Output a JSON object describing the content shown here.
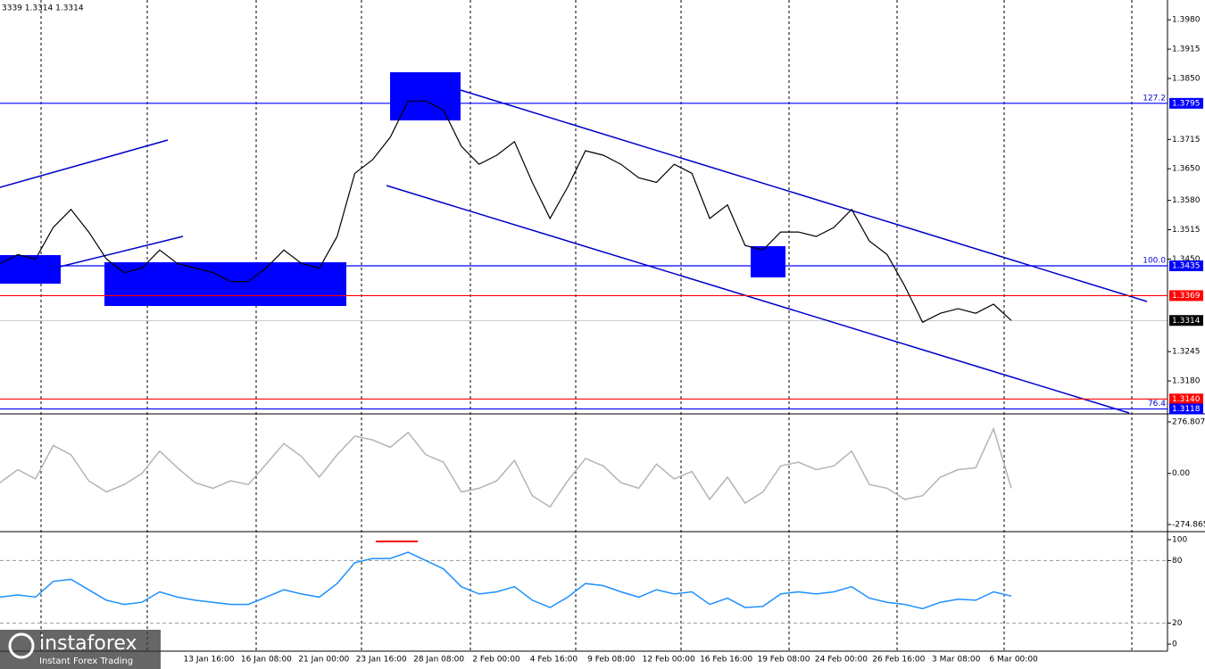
{
  "chart_data": [
    {
      "type": "line",
      "title": "3339 1.3314 1.3314",
      "color": "#000000",
      "values": [
        1.344,
        1.346,
        1.345,
        1.352,
        1.356,
        1.351,
        1.345,
        1.342,
        1.343,
        1.347,
        1.344,
        1.343,
        1.342,
        1.34,
        1.34,
        1.343,
        1.347,
        1.344,
        1.343,
        1.35,
        1.364,
        1.367,
        1.372,
        1.38,
        1.38,
        1.378,
        1.37,
        1.366,
        1.368,
        1.371,
        1.362,
        1.354,
        1.361,
        1.369,
        1.368,
        1.366,
        1.363,
        1.362,
        1.366,
        1.364,
        1.354,
        1.357,
        1.348,
        1.347,
        1.351,
        1.351,
        1.35,
        1.352,
        1.356,
        1.349,
        1.346,
        1.339,
        1.331,
        1.333,
        1.334,
        1.333,
        1.335,
        1.3314
      ],
      "ylim": [
        1.3109,
        1.4014
      ],
      "yticks": [
        {
          "value": 1.398,
          "label": "1.3980"
        },
        1.3915,
        {
          "value": 1.385,
          "label": "1.3850"
        },
        1.3715,
        {
          "value": 1.365,
          "label": "1.3650"
        },
        {
          "value": 1.358,
          "label": "1.3580"
        },
        1.3515,
        {
          "value": 1.345,
          "label": "1.3450"
        },
        1.3245,
        {
          "value": 1.318,
          "label": "1.3180"
        }
      ],
      "levels": [
        {
          "value": 1.3795,
          "label": "1.3795",
          "color": "#0000ff",
          "fib": 127.2
        },
        {
          "value": 1.3435,
          "label": "1.3435",
          "color": "#0000ff",
          "fib": {
            "value": 100,
            "label": "100.0"
          }
        },
        {
          "value": 1.3369,
          "label": "1.3369",
          "color": "#ff0000"
        },
        {
          "value": 1.3314,
          "label": "1.3314",
          "color": "#000000"
        },
        {
          "value": 1.314,
          "label": "1.3140",
          "color": "#ff0000"
        },
        {
          "value": 1.3118,
          "label": "1.3118",
          "color": "#0000ff",
          "fib": 76.4
        }
      ],
      "x_tick_labels": [
        "13 Jan 16:00",
        "16 Jan 08:00",
        "21 Jan 00:00",
        "23 Jan 16:00",
        "28 Jan 08:00",
        "2 Feb 00:00",
        "4 Feb 16:00",
        "9 Feb 08:00",
        "12 Feb 00:00",
        "16 Feb 16:00",
        "19 Feb 08:00",
        "24 Feb 00:00",
        "26 Feb 16:00",
        "3 Mar 08:00",
        "6 Mar 00:00"
      ]
    },
    {
      "type": "line",
      "color": "#b4b4b4",
      "values": [
        -50,
        20,
        -30,
        150,
        100,
        -40,
        -100,
        -60,
        0,
        120,
        30,
        -50,
        -80,
        -40,
        -60,
        50,
        160,
        90,
        -20,
        100,
        200,
        180,
        140,
        220,
        100,
        60,
        -100,
        -80,
        -40,
        70,
        -120,
        -180,
        -40,
        80,
        40,
        -50,
        -80,
        50,
        -30,
        10,
        -140,
        -20,
        -160,
        -100,
        40,
        60,
        20,
        40,
        120,
        -60,
        -80,
        -140,
        -120,
        -20,
        20,
        30,
        240,
        -80
      ],
      "ylim": [
        -303.6,
        315
      ],
      "yticks": [
        276.8074,
        {
          "value": 0,
          "label": "0.00"
        },
        {
          "value": -274.865,
          "label": "-274.8650"
        }
      ]
    },
    {
      "type": "line",
      "color": "#1e90ff",
      "values": [
        45,
        47,
        45,
        60,
        62,
        52,
        42,
        38,
        40,
        50,
        45,
        42,
        40,
        38,
        38,
        45,
        52,
        48,
        45,
        58,
        78,
        82,
        82,
        88,
        80,
        72,
        55,
        48,
        50,
        55,
        42,
        35,
        45,
        58,
        56,
        50,
        45,
        52,
        48,
        50,
        38,
        44,
        35,
        36,
        48,
        50,
        48,
        50,
        55,
        44,
        40,
        38,
        34,
        40,
        43,
        42,
        50,
        46
      ],
      "ylim": [
        -6.8,
        106
      ],
      "yticks": [
        100,
        80,
        20,
        0
      ],
      "guides": [
        80,
        20
      ]
    }
  ],
  "watermark": {
    "name": "instaforex",
    "tagline": "Instant Forex Trading"
  }
}
